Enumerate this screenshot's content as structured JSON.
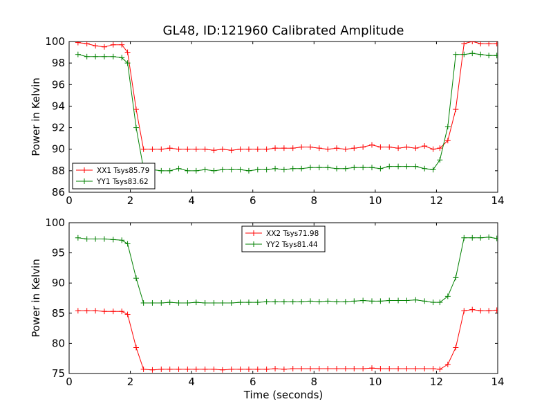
{
  "chart_data": [
    {
      "type": "line",
      "title": "GL48, ID:121960 Calibrated Amplitude",
      "xlabel": "",
      "ylabel": "Power in Kelvin",
      "xlim": [
        0,
        14
      ],
      "ylim": [
        86,
        100
      ],
      "xticks": [
        0,
        2,
        4,
        6,
        8,
        10,
        12,
        14
      ],
      "yticks": [
        86,
        88,
        90,
        92,
        94,
        96,
        98,
        100
      ],
      "grid": false,
      "legend_position": "lower-left",
      "x": [
        0.29,
        0.58,
        0.86,
        1.15,
        1.44,
        1.72,
        1.91,
        2.19,
        2.43,
        2.72,
        3.01,
        3.29,
        3.58,
        3.87,
        4.15,
        4.44,
        4.73,
        5.01,
        5.3,
        5.59,
        5.87,
        6.16,
        6.45,
        6.73,
        7.02,
        7.31,
        7.59,
        7.88,
        8.17,
        8.45,
        8.74,
        9.03,
        9.31,
        9.6,
        9.89,
        10.17,
        10.46,
        10.75,
        11.03,
        11.32,
        11.61,
        11.89,
        12.11,
        12.37,
        12.63,
        12.9,
        13.17,
        13.44,
        13.71,
        13.97
      ],
      "series": [
        {
          "name": "XX1 Tsys85.79",
          "color": "#ff0000",
          "values": [
            99.9,
            99.8,
            99.6,
            99.5,
            99.7,
            99.7,
            99.0,
            93.7,
            90.0,
            90.0,
            90.0,
            90.1,
            90.0,
            90.0,
            90.0,
            90.0,
            89.9,
            90.0,
            89.9,
            90.0,
            90.0,
            90.0,
            90.0,
            90.1,
            90.1,
            90.1,
            90.2,
            90.2,
            90.1,
            90.0,
            90.1,
            90.0,
            90.1,
            90.2,
            90.4,
            90.2,
            90.2,
            90.1,
            90.2,
            90.1,
            90.3,
            90.0,
            90.1,
            90.8,
            93.7,
            99.8,
            100.0,
            99.8,
            99.8,
            99.8
          ]
        },
        {
          "name": "YY1 Tsys83.62",
          "color": "#008000",
          "values": [
            98.8,
            98.6,
            98.6,
            98.6,
            98.6,
            98.5,
            98.0,
            92.0,
            88.2,
            88.1,
            88.0,
            88.0,
            88.2,
            88.0,
            88.0,
            88.1,
            88.0,
            88.1,
            88.1,
            88.1,
            88.0,
            88.1,
            88.1,
            88.2,
            88.1,
            88.2,
            88.2,
            88.3,
            88.3,
            88.3,
            88.2,
            88.2,
            88.3,
            88.3,
            88.3,
            88.2,
            88.4,
            88.4,
            88.4,
            88.4,
            88.2,
            88.1,
            89.0,
            92.1,
            98.8,
            98.8,
            98.9,
            98.8,
            98.7,
            98.7
          ]
        }
      ]
    },
    {
      "type": "line",
      "title": "",
      "xlabel": "Time (seconds)",
      "ylabel": "Power in Kelvin",
      "xlim": [
        0,
        14
      ],
      "ylim": [
        75,
        100
      ],
      "xticks": [
        0,
        2,
        4,
        6,
        8,
        10,
        12,
        14
      ],
      "yticks": [
        75,
        80,
        85,
        90,
        95,
        100
      ],
      "grid": false,
      "legend_position": "upper-center",
      "x": [
        0.29,
        0.58,
        0.86,
        1.15,
        1.44,
        1.72,
        1.91,
        2.19,
        2.43,
        2.72,
        3.01,
        3.29,
        3.58,
        3.87,
        4.15,
        4.44,
        4.73,
        5.01,
        5.3,
        5.59,
        5.87,
        6.16,
        6.45,
        6.73,
        7.02,
        7.31,
        7.59,
        7.88,
        8.17,
        8.45,
        8.74,
        9.03,
        9.31,
        9.6,
        9.89,
        10.17,
        10.46,
        10.75,
        11.03,
        11.32,
        11.61,
        11.89,
        12.11,
        12.37,
        12.63,
        12.9,
        13.17,
        13.44,
        13.71,
        13.97
      ],
      "series": [
        {
          "name": "XX2 Tsys71.98",
          "color": "#ff0000",
          "values": [
            85.4,
            85.4,
            85.4,
            85.3,
            85.3,
            85.3,
            84.8,
            79.3,
            75.7,
            75.6,
            75.7,
            75.7,
            75.7,
            75.7,
            75.7,
            75.7,
            75.7,
            75.6,
            75.7,
            75.7,
            75.7,
            75.7,
            75.7,
            75.8,
            75.7,
            75.8,
            75.8,
            75.8,
            75.8,
            75.8,
            75.8,
            75.8,
            75.8,
            75.8,
            75.9,
            75.8,
            75.8,
            75.8,
            75.8,
            75.8,
            75.8,
            75.8,
            75.7,
            76.5,
            79.3,
            85.4,
            85.6,
            85.4,
            85.4,
            85.5
          ]
        },
        {
          "name": "YY2 Tsys81.44",
          "color": "#008000",
          "values": [
            97.5,
            97.3,
            97.3,
            97.3,
            97.2,
            97.1,
            96.5,
            90.8,
            86.7,
            86.7,
            86.7,
            86.8,
            86.7,
            86.7,
            86.8,
            86.7,
            86.7,
            86.7,
            86.7,
            86.8,
            86.8,
            86.8,
            86.9,
            86.9,
            86.9,
            86.9,
            86.9,
            87.0,
            86.9,
            87.0,
            86.9,
            86.9,
            87.0,
            87.1,
            87.0,
            87.0,
            87.1,
            87.1,
            87.1,
            87.2,
            87.0,
            86.8,
            86.8,
            87.8,
            90.9,
            97.5,
            97.5,
            97.5,
            97.6,
            97.4
          ]
        }
      ]
    }
  ]
}
